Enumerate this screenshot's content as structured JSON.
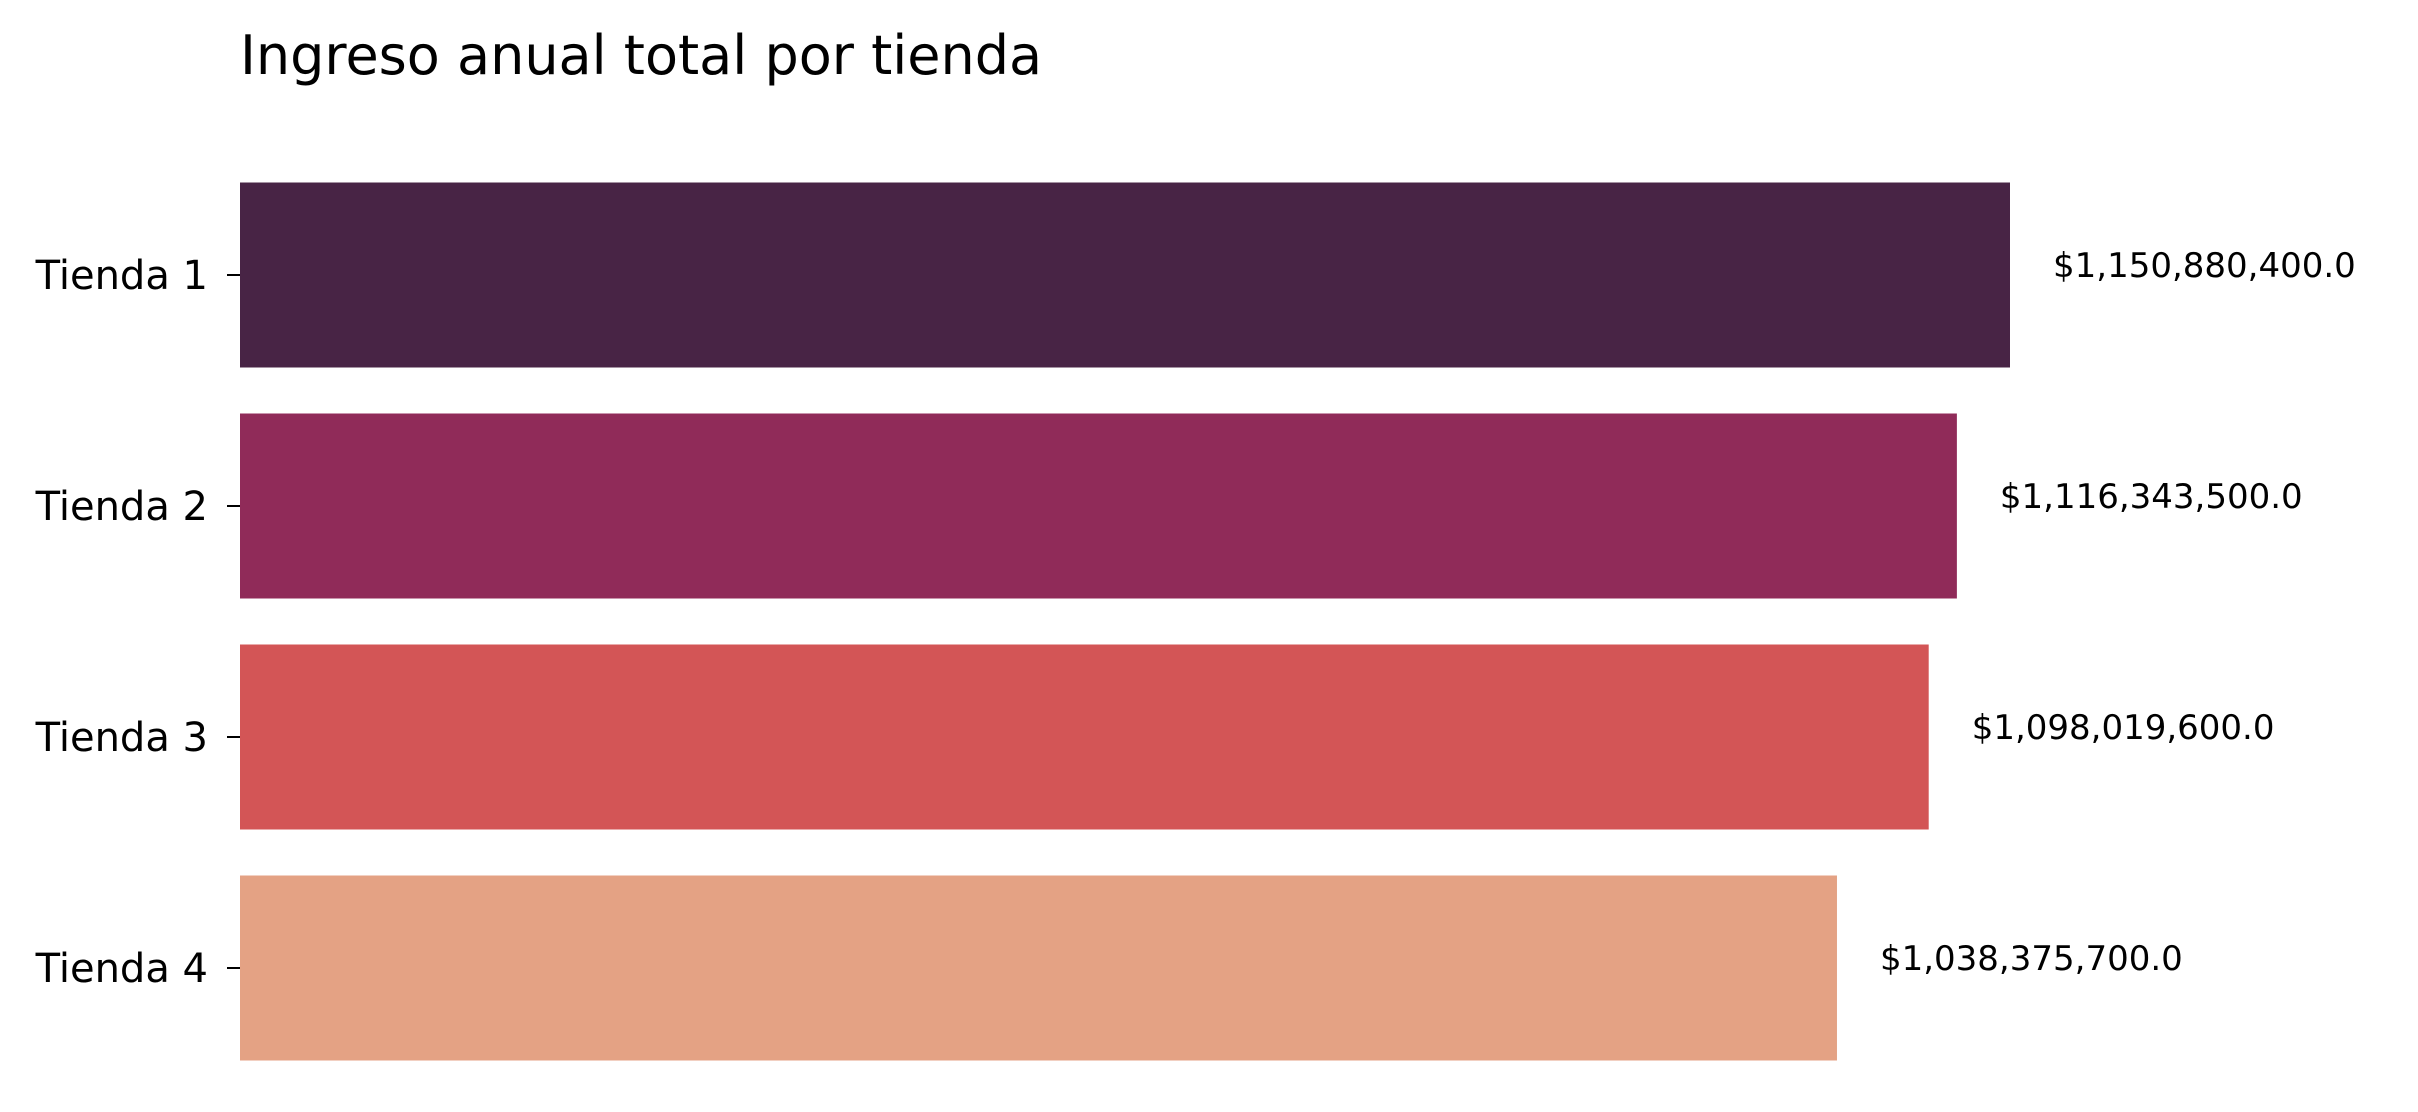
{
  "chart_data": {
    "type": "bar",
    "orientation": "horizontal",
    "title": "Ingreso anual total por tienda",
    "xlabel": "",
    "ylabel": "",
    "categories": [
      "Tienda 1",
      "Tienda 2",
      "Tienda 3",
      "Tienda 4"
    ],
    "values": [
      1150880400.0,
      1116343500.0,
      1098019600.0,
      1038375700.0
    ],
    "value_labels": [
      "$1,150,880,400.0",
      "$1,116,343,500.0",
      "$1,098,019,600.0",
      "$1,038,375,700.0"
    ],
    "colors": [
      "#482445",
      "#902b59",
      "#d35556",
      "#e4a284"
    ],
    "xlim": [
      0,
      1150880400.0
    ],
    "grid": false,
    "x_axis_visible": false,
    "spines_visible": false
  }
}
